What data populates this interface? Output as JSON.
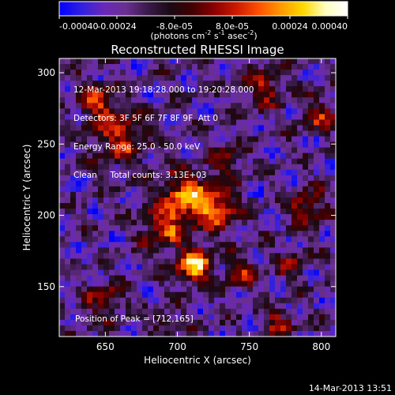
{
  "colorbar": {
    "min": -0.0004,
    "max": 0.0004,
    "ticks": [
      "-0.00040",
      "-0.00024",
      "-8.0e-05",
      "8.0e-05",
      "0.00024",
      "0.00040"
    ],
    "units_prefix": "(photons cm",
    "units_exp1": "-2",
    "units_mid": " s",
    "units_exp2": "-1",
    "units_suffix": " asec",
    "units_exp3": "-2",
    "units_close": ")",
    "stops": [
      "#0000ff",
      "#3020e0",
      "#6a28b8",
      "#6a3090",
      "#3a1a4a",
      "#1a0a14",
      "#400000",
      "#8b0000",
      "#cc1a00",
      "#ff5000",
      "#ff9a00",
      "#ffd800",
      "#ffffc0",
      "#ffffff"
    ]
  },
  "chart_data": {
    "type": "heatmap",
    "title": "Reconstructed RHESSI Image",
    "xlabel": "Heliocentric X (arcsec)",
    "ylabel": "Heliocentric Y (arcsec)",
    "xlim": [
      618,
      810
    ],
    "ylim": [
      115,
      310
    ],
    "xticks": [
      650,
      700,
      750,
      800
    ],
    "yticks": [
      150,
      200,
      250,
      300
    ],
    "grid": false,
    "peak": [
      712,
      165
    ],
    "sources": [
      {
        "x": 712,
        "y": 165,
        "sigma": 9,
        "amp": 1.0
      },
      {
        "x": 705,
        "y": 212,
        "sigma": 12,
        "amp": 0.85
      },
      {
        "x": 728,
        "y": 205,
        "sigma": 10,
        "amp": 0.75
      },
      {
        "x": 690,
        "y": 190,
        "sigma": 10,
        "amp": 0.6
      },
      {
        "x": 660,
        "y": 255,
        "sigma": 14,
        "amp": 0.55
      },
      {
        "x": 645,
        "y": 280,
        "sigma": 10,
        "amp": 0.5
      },
      {
        "x": 790,
        "y": 205,
        "sigma": 9,
        "amp": 0.55
      },
      {
        "x": 800,
        "y": 270,
        "sigma": 9,
        "amp": 0.45
      },
      {
        "x": 760,
        "y": 290,
        "sigma": 10,
        "amp": 0.5
      },
      {
        "x": 650,
        "y": 140,
        "sigma": 9,
        "amp": 0.45
      },
      {
        "x": 745,
        "y": 160,
        "sigma": 8,
        "amp": 0.5
      },
      {
        "x": 770,
        "y": 125,
        "sigma": 7,
        "amp": 0.5
      },
      {
        "x": 690,
        "y": 125,
        "sigma": 6,
        "amp": 0.4
      },
      {
        "x": 735,
        "y": 240,
        "sigma": 9,
        "amp": 0.4
      },
      {
        "x": 780,
        "y": 165,
        "sigma": 7,
        "amp": 0.4
      }
    ]
  },
  "info": {
    "line1": "12-Mar-2013 19:18:28.000 to 19:20:28.000",
    "line2": "Detectors: 3F 5F 6F 7F 8F 9F  Att 0",
    "line3": "Energy Range: 25.0 - 50.0 keV",
    "line4": "Clean     Total counts: 3.13E+03",
    "peak_text": "Position of Peak = [712,165]"
  },
  "timestamp": "14-Mar-2013 13:51"
}
